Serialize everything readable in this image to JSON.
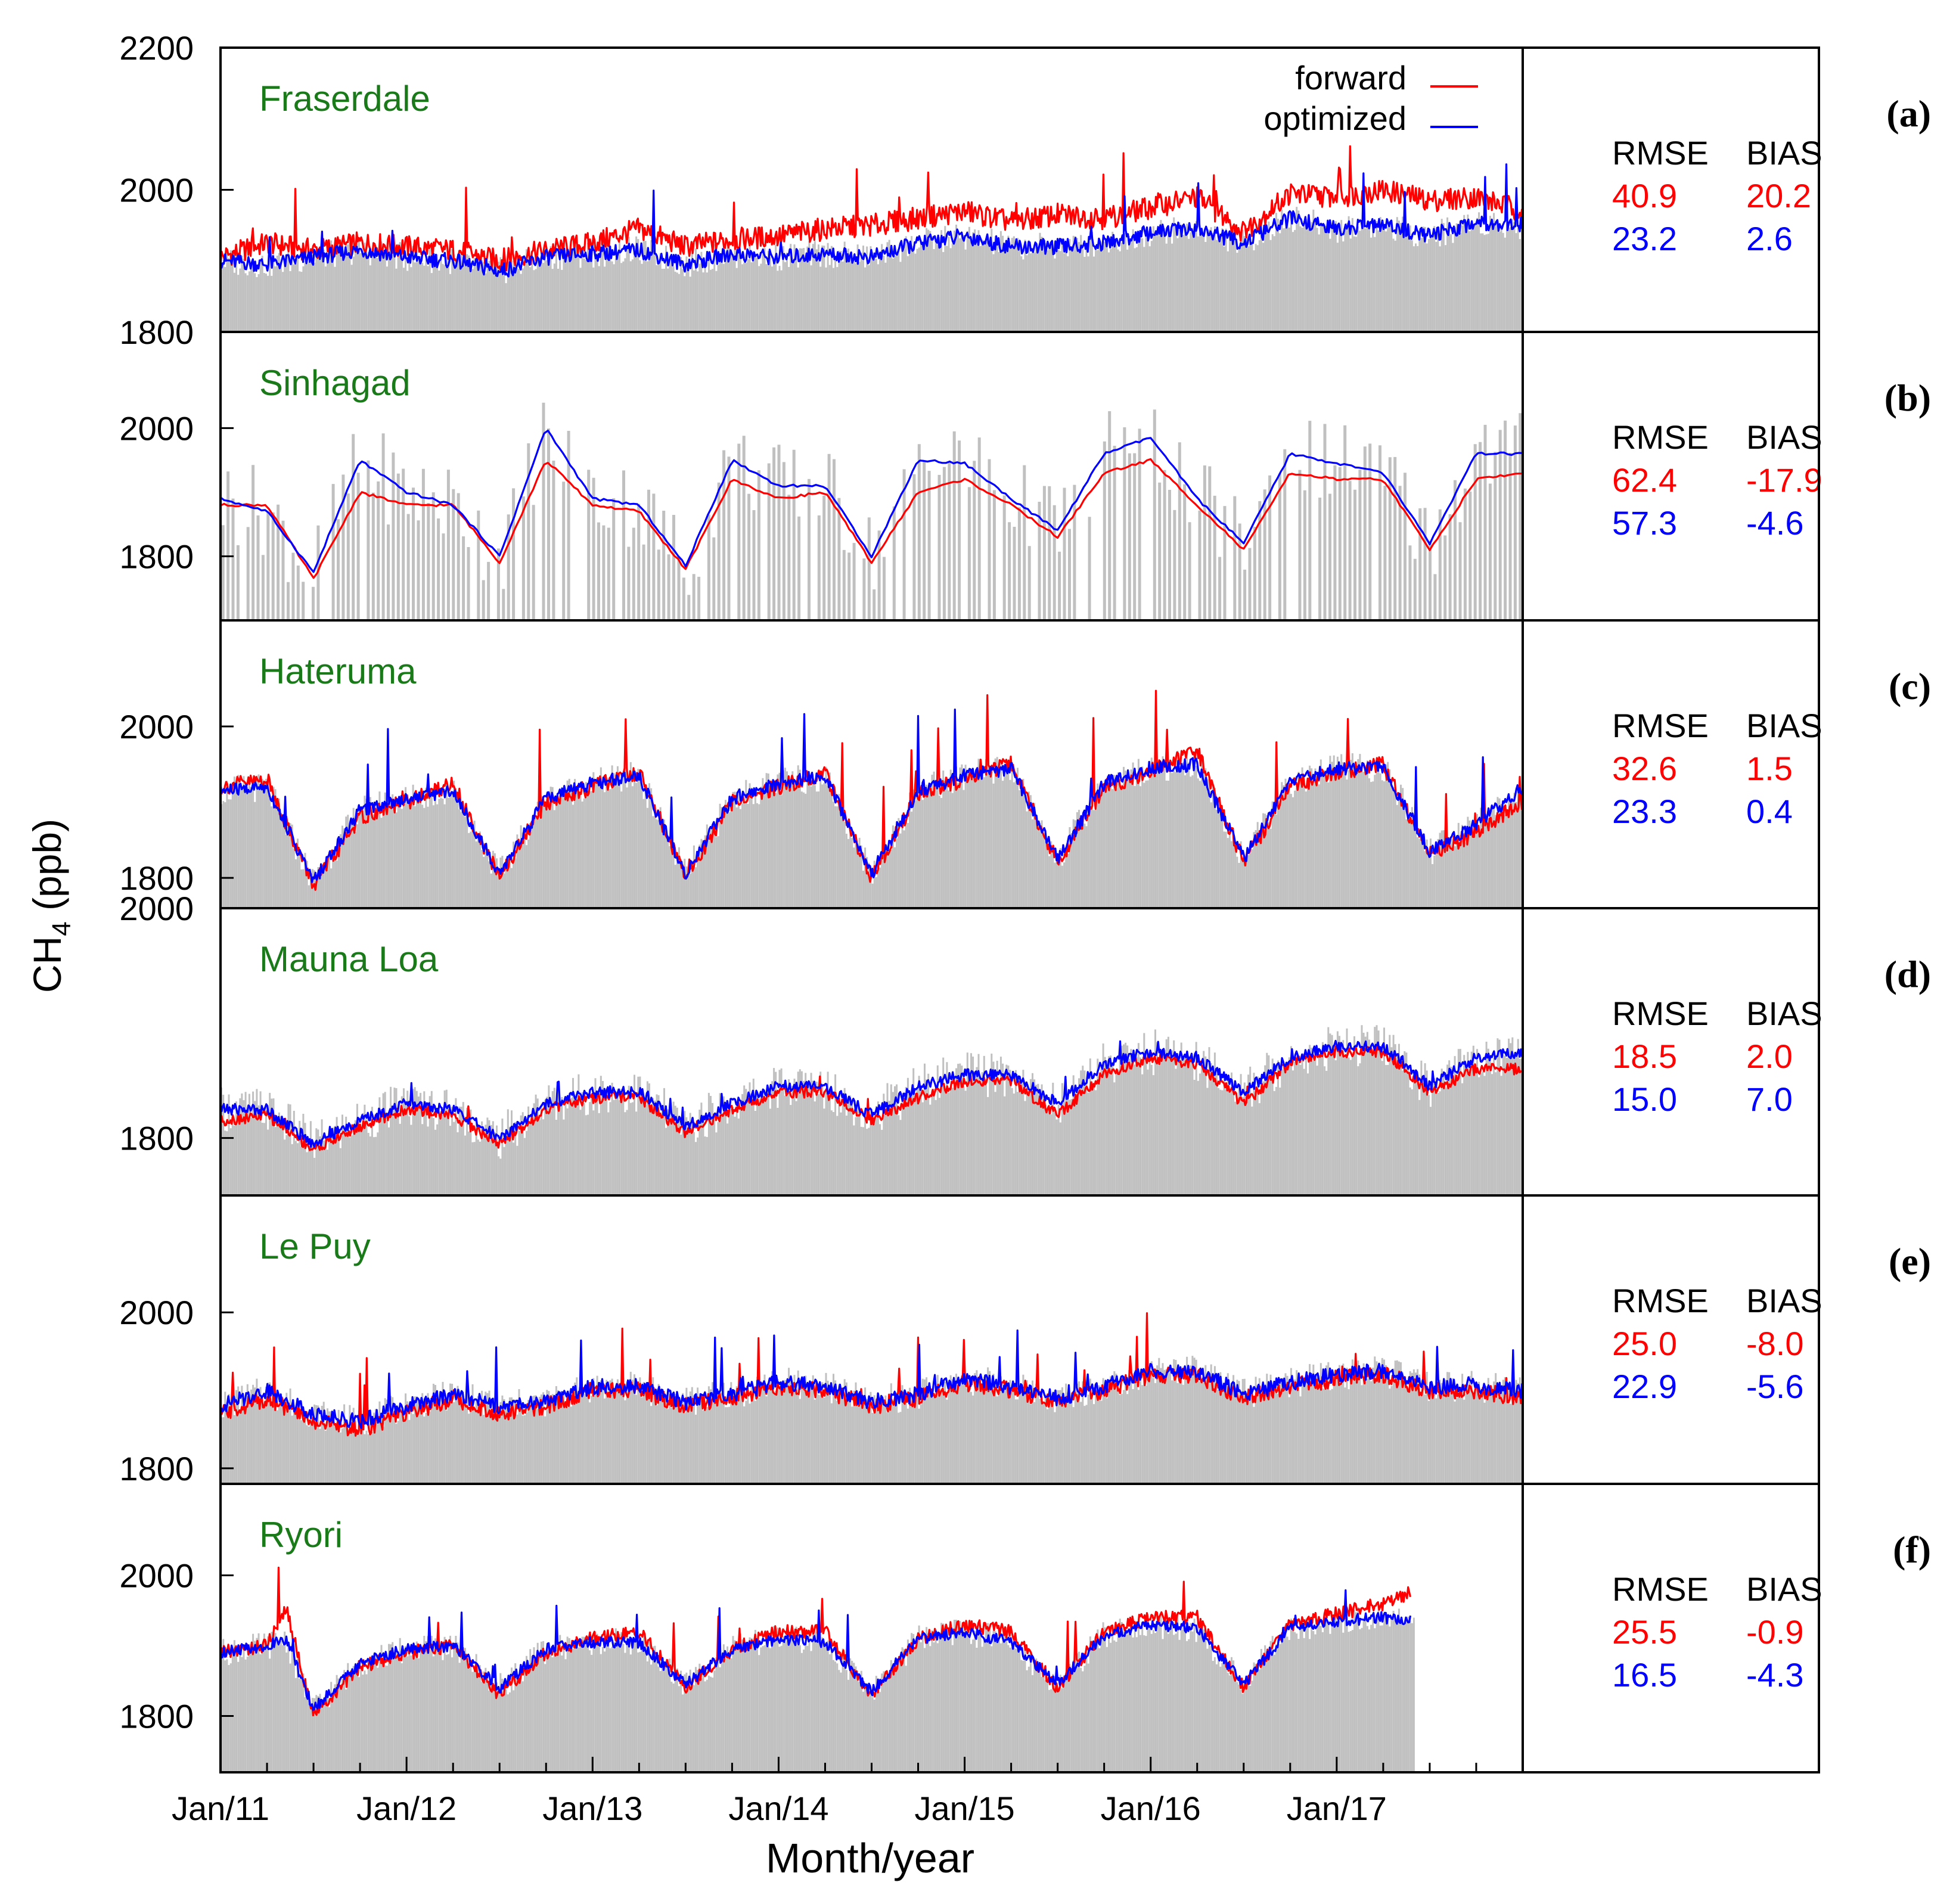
{
  "figure": {
    "y_axis_label_main": "CH",
    "y_axis_label_sub": "4",
    "y_axis_label_unit": " (ppb)",
    "x_axis_label": "Month/year",
    "legend": [
      {
        "label": "forward",
        "color": "#ff0000"
      },
      {
        "label": "optimized",
        "color": "#0000ff"
      }
    ],
    "observation_color": "#c0c0c0",
    "site_label_color": "#1a7a1a",
    "stat_headers": [
      "RMSE",
      "BIAS"
    ],
    "x_tick_labels": [
      "Jan/11",
      "Jan/12",
      "Jan/13",
      "Jan/14",
      "Jan/15",
      "Jan/16",
      "Jan/17"
    ]
  },
  "chart_data": [
    {
      "panel": "(a)",
      "site": "Fraserdale",
      "type": "line",
      "title": "Fraserdale",
      "xlabel": "Month/year",
      "ylabel": "CH4 (ppb)",
      "ylim": [
        1800,
        2200
      ],
      "yticks": [
        1800,
        2000,
        2200
      ],
      "x_range_years": [
        2011.0,
        2018.0
      ],
      "stats": {
        "forward": {
          "rmse": "40.9",
          "bias": "20.2"
        },
        "optimized": {
          "rmse": "23.2",
          "bias": "2.6"
        }
      },
      "series": [
        {
          "name": "forward",
          "color": "#ff0000",
          "x": [
            2011.0,
            2011.25,
            2011.5,
            2011.75,
            2012.0,
            2012.25,
            2012.5,
            2012.75,
            2013.0,
            2013.25,
            2013.5,
            2013.75,
            2014.0,
            2014.25,
            2014.5,
            2014.75,
            2015.0,
            2015.25,
            2015.5,
            2015.75,
            2016.0,
            2016.25,
            2016.5,
            2016.75,
            2017.0,
            2017.25,
            2017.5,
            2017.75,
            2018.0
          ],
          "values": [
            1905,
            1925,
            1915,
            1925,
            1920,
            1915,
            1900,
            1915,
            1925,
            1945,
            1920,
            1930,
            1935,
            1945,
            1950,
            1960,
            1970,
            1955,
            1965,
            1960,
            1975,
            1990,
            1940,
            1995,
            1990,
            2000,
            1985,
            1990,
            1970
          ]
        },
        {
          "name": "optimized",
          "color": "#0000ff",
          "x": [
            2011.0,
            2011.25,
            2011.5,
            2011.75,
            2012.0,
            2012.25,
            2012.5,
            2012.75,
            2013.0,
            2013.25,
            2013.5,
            2013.75,
            2014.0,
            2014.25,
            2014.5,
            2014.75,
            2015.0,
            2015.25,
            2015.5,
            2015.75,
            2016.0,
            2016.25,
            2016.5,
            2016.75,
            2017.0,
            2017.25,
            2017.5,
            2017.75,
            2018.0
          ],
          "values": [
            1900,
            1895,
            1905,
            1915,
            1905,
            1900,
            1885,
            1905,
            1910,
            1915,
            1895,
            1910,
            1905,
            1910,
            1905,
            1925,
            1935,
            1920,
            1920,
            1925,
            1940,
            1945,
            1925,
            1960,
            1945,
            1950,
            1935,
            1955,
            1950
          ]
        }
      ]
    },
    {
      "panel": "(b)",
      "site": "Sinhagad",
      "type": "line",
      "title": "Sinhagad",
      "xlabel": "Month/year",
      "ylabel": "CH4 (ppb)",
      "ylim": [
        1700,
        2150
      ],
      "yticks": [
        1800,
        2000
      ],
      "x_range_years": [
        2011.0,
        2018.0
      ],
      "stats": {
        "forward": {
          "rmse": "62.4",
          "bias": "-17.9"
        },
        "optimized": {
          "rmse": "57.3",
          "bias": "-4.6"
        }
      },
      "series": [
        {
          "name": "forward",
          "color": "#ff0000",
          "x": [
            2011.0,
            2011.25,
            2011.5,
            2011.75,
            2012.0,
            2012.25,
            2012.5,
            2012.75,
            2013.0,
            2013.25,
            2013.5,
            2013.75,
            2014.0,
            2014.25,
            2014.5,
            2014.75,
            2015.0,
            2015.25,
            2015.5,
            2015.75,
            2016.0,
            2016.25,
            2016.5,
            2016.75,
            2017.0,
            2017.25,
            2017.5,
            2017.75,
            2018.0
          ],
          "values": [
            1880,
            1880,
            1765,
            1900,
            1880,
            1880,
            1790,
            1950,
            1880,
            1870,
            1780,
            1920,
            1890,
            1900,
            1790,
            1900,
            1920,
            1880,
            1830,
            1930,
            1950,
            1880,
            1810,
            1930,
            1920,
            1920,
            1810,
            1920,
            1930
          ]
        },
        {
          "name": "optimized",
          "color": "#0000ff",
          "x": [
            2011.0,
            2011.25,
            2011.5,
            2011.75,
            2012.0,
            2012.25,
            2012.5,
            2012.75,
            2013.0,
            2013.25,
            2013.5,
            2013.75,
            2014.0,
            2014.25,
            2014.5,
            2014.75,
            2015.0,
            2015.25,
            2015.5,
            2015.75,
            2016.0,
            2016.25,
            2016.5,
            2016.75,
            2017.0,
            2017.25,
            2017.5,
            2017.75,
            2018.0
          ],
          "values": [
            1890,
            1870,
            1775,
            1950,
            1900,
            1880,
            1800,
            2000,
            1890,
            1880,
            1785,
            1950,
            1910,
            1910,
            1800,
            1950,
            1945,
            1890,
            1840,
            1960,
            1985,
            1890,
            1820,
            1960,
            1945,
            1930,
            1820,
            1960,
            1960
          ]
        }
      ]
    },
    {
      "panel": "(c)",
      "site": "Hateruma",
      "type": "line",
      "title": "Hateruma",
      "xlabel": "Month/year",
      "ylabel": "CH4 (ppb)",
      "ylim": [
        1760,
        2140
      ],
      "yticks": [
        1800,
        2000
      ],
      "x_range_years": [
        2011.0,
        2018.0
      ],
      "stats": {
        "forward": {
          "rmse": "32.6",
          "bias": "1.5"
        },
        "optimized": {
          "rmse": "23.3",
          "bias": "0.4"
        }
      },
      "series": [
        {
          "name": "forward",
          "color": "#ff0000",
          "x": [
            2011.0,
            2011.25,
            2011.5,
            2011.75,
            2012.0,
            2012.25,
            2012.5,
            2012.75,
            2013.0,
            2013.25,
            2013.5,
            2013.75,
            2014.0,
            2014.25,
            2014.5,
            2014.75,
            2015.0,
            2015.25,
            2015.5,
            2015.75,
            2016.0,
            2016.25,
            2016.5,
            2016.75,
            2017.0,
            2017.25,
            2017.5,
            2017.75,
            2018.0
          ],
          "values": [
            1920,
            1930,
            1790,
            1880,
            1900,
            1925,
            1800,
            1900,
            1920,
            1940,
            1800,
            1900,
            1920,
            1940,
            1800,
            1910,
            1930,
            1950,
            1820,
            1920,
            1940,
            1970,
            1820,
            1920,
            1940,
            1950,
            1830,
            1860,
            1900
          ]
        },
        {
          "name": "optimized",
          "color": "#0000ff",
          "x": [
            2011.0,
            2011.25,
            2011.5,
            2011.75,
            2012.0,
            2012.25,
            2012.5,
            2012.75,
            2013.0,
            2013.25,
            2013.5,
            2013.75,
            2014.0,
            2014.25,
            2014.5,
            2014.75,
            2015.0,
            2015.25,
            2015.5,
            2015.75,
            2016.0,
            2016.25,
            2016.5,
            2016.75,
            2017.0,
            2017.25,
            2017.5,
            2017.75,
            2018.0
          ],
          "values": [
            1915,
            1920,
            1795,
            1890,
            1905,
            1915,
            1805,
            1905,
            1925,
            1935,
            1805,
            1905,
            1925,
            1935,
            1805,
            1915,
            1935,
            1945,
            1825,
            1925,
            1945,
            1950,
            1825,
            1925,
            1945,
            1945,
            1835,
            1870,
            1920
          ]
        }
      ]
    },
    {
      "panel": "(d)",
      "site": "Mauna Loa",
      "type": "line",
      "title": "Mauna Loa",
      "xlabel": "Month/year",
      "ylabel": "CH4 (ppb)",
      "ylim": [
        1750,
        2000
      ],
      "yticks": [
        1800,
        2000
      ],
      "x_range_years": [
        2011.0,
        2018.0
      ],
      "stats": {
        "forward": {
          "rmse": "18.5",
          "bias": "2.0"
        },
        "optimized": {
          "rmse": "15.0",
          "bias": "7.0"
        }
      },
      "series": [
        {
          "name": "forward",
          "color": "#ff0000",
          "x": [
            2011.0,
            2011.25,
            2011.5,
            2011.75,
            2012.0,
            2012.25,
            2012.5,
            2012.75,
            2013.0,
            2013.25,
            2013.5,
            2013.75,
            2014.0,
            2014.25,
            2014.5,
            2014.75,
            2015.0,
            2015.25,
            2015.5,
            2015.75,
            2016.0,
            2016.25,
            2016.5,
            2016.75,
            2017.0,
            2017.25,
            2017.5,
            2017.75,
            2018.0
          ],
          "values": [
            1815,
            1820,
            1790,
            1810,
            1825,
            1820,
            1795,
            1825,
            1835,
            1835,
            1805,
            1825,
            1840,
            1840,
            1815,
            1835,
            1850,
            1850,
            1820,
            1855,
            1870,
            1865,
            1830,
            1865,
            1875,
            1875,
            1840,
            1860,
            1860
          ]
        },
        {
          "name": "optimized",
          "color": "#0000ff",
          "x": [
            2011.0,
            2011.25,
            2011.5,
            2011.75,
            2012.0,
            2012.25,
            2012.5,
            2012.75,
            2013.0,
            2013.25,
            2013.5,
            2013.75,
            2014.0,
            2014.25,
            2014.5,
            2014.75,
            2015.0,
            2015.25,
            2015.5,
            2015.75,
            2016.0,
            2016.25,
            2016.5,
            2016.75,
            2017.0,
            2017.25,
            2017.5,
            2017.75,
            2018.0
          ],
          "values": [
            1825,
            1825,
            1795,
            1815,
            1830,
            1825,
            1800,
            1830,
            1840,
            1840,
            1810,
            1830,
            1845,
            1845,
            1820,
            1845,
            1855,
            1855,
            1830,
            1865,
            1875,
            1870,
            1840,
            1870,
            1880,
            1880,
            1845,
            1870,
            1875
          ]
        }
      ]
    },
    {
      "panel": "(e)",
      "site": "Le Puy",
      "type": "line",
      "title": "Le Puy",
      "xlabel": "Month/year",
      "ylabel": "CH4 (ppb)",
      "ylim": [
        1780,
        2150
      ],
      "yticks": [
        1800,
        2000
      ],
      "x_range_years": [
        2011.0,
        2018.0
      ],
      "stats": {
        "forward": {
          "rmse": "25.0",
          "bias": "-8.0"
        },
        "optimized": {
          "rmse": "22.9",
          "bias": "-5.6"
        }
      },
      "series": [
        {
          "name": "forward",
          "color": "#ff0000",
          "x": [
            2011.0,
            2011.25,
            2011.5,
            2011.75,
            2012.0,
            2012.25,
            2012.5,
            2012.75,
            2013.0,
            2013.25,
            2013.5,
            2013.75,
            2014.0,
            2014.25,
            2014.5,
            2014.75,
            2015.0,
            2015.25,
            2015.5,
            2015.75,
            2016.0,
            2016.25,
            2016.5,
            2016.75,
            2017.0,
            2017.25,
            2017.5,
            2017.75,
            2018.0
          ],
          "values": [
            1870,
            1890,
            1860,
            1850,
            1870,
            1890,
            1870,
            1880,
            1900,
            1900,
            1880,
            1890,
            1905,
            1900,
            1880,
            1890,
            1910,
            1900,
            1885,
            1900,
            1920,
            1920,
            1890,
            1905,
            1915,
            1920,
            1900,
            1900,
            1890
          ]
        },
        {
          "name": "optimized",
          "color": "#0000ff",
          "x": [
            2011.0,
            2011.25,
            2011.5,
            2011.75,
            2012.0,
            2012.25,
            2012.5,
            2012.75,
            2013.0,
            2013.25,
            2013.5,
            2013.75,
            2014.0,
            2014.25,
            2014.5,
            2014.75,
            2015.0,
            2015.25,
            2015.5,
            2015.75,
            2016.0,
            2016.25,
            2016.5,
            2016.75,
            2017.0,
            2017.25,
            2017.5,
            2017.75,
            2018.0
          ],
          "values": [
            1880,
            1900,
            1870,
            1860,
            1880,
            1895,
            1880,
            1885,
            1905,
            1905,
            1885,
            1895,
            1910,
            1905,
            1885,
            1895,
            1915,
            1905,
            1890,
            1905,
            1925,
            1925,
            1895,
            1910,
            1920,
            1925,
            1905,
            1905,
            1900
          ]
        }
      ]
    },
    {
      "panel": "(f)",
      "site": "Ryori",
      "type": "line",
      "title": "Ryori",
      "xlabel": "Month/year",
      "ylabel": "CH4 (ppb)",
      "ylim": [
        1720,
        2130
      ],
      "yticks": [
        1800,
        2000
      ],
      "x_range_years": [
        2011.0,
        2018.0
      ],
      "stats": {
        "forward": {
          "rmse": "25.5",
          "bias": "-0.9"
        },
        "optimized": {
          "rmse": "16.5",
          "bias": "-4.3"
        }
      },
      "series": [
        {
          "name": "forward",
          "color": "#ff0000",
          "x": [
            2011.0,
            2011.25,
            2011.35,
            2011.5,
            2011.75,
            2012.0,
            2012.25,
            2012.5,
            2012.75,
            2013.0,
            2013.25,
            2013.5,
            2013.75,
            2014.0,
            2014.25,
            2014.5,
            2014.75,
            2015.0,
            2015.25,
            2015.5,
            2015.75,
            2016.0,
            2016.25,
            2016.5,
            2016.75,
            2017.0,
            2017.25,
            2017.4
          ],
          "values": [
            1890,
            1900,
            1955,
            1800,
            1870,
            1890,
            1900,
            1830,
            1890,
            1910,
            1920,
            1840,
            1895,
            1920,
            1920,
            1830,
            1910,
            1930,
            1920,
            1840,
            1920,
            1940,
            1940,
            1840,
            1930,
            1945,
            1960,
            1975
          ]
        },
        {
          "name": "optimized",
          "color": "#0000ff",
          "x": [
            2011.0,
            2011.25,
            2011.35,
            2011.5,
            2011.75,
            2012.0,
            2012.25,
            2012.5,
            2012.75,
            2013.0,
            2013.25,
            2013.5,
            2013.75,
            2014.0,
            2014.25,
            2014.5,
            2014.75,
            2015.0,
            2015.25,
            2015.5,
            2015.75,
            2016.0,
            2016.25,
            2016.5,
            2016.75,
            2017.0,
            2017.25,
            2017.4
          ],
          "values": [
            1890,
            1900,
            1910,
            1810,
            1875,
            1895,
            1900,
            1840,
            1895,
            1905,
            1905,
            1845,
            1895,
            1910,
            1905,
            1835,
            1910,
            1920,
            1905,
            1845,
            1915,
            1930,
            1925,
            1845,
            1925,
            1935,
            1940,
            1935
          ]
        }
      ]
    }
  ]
}
